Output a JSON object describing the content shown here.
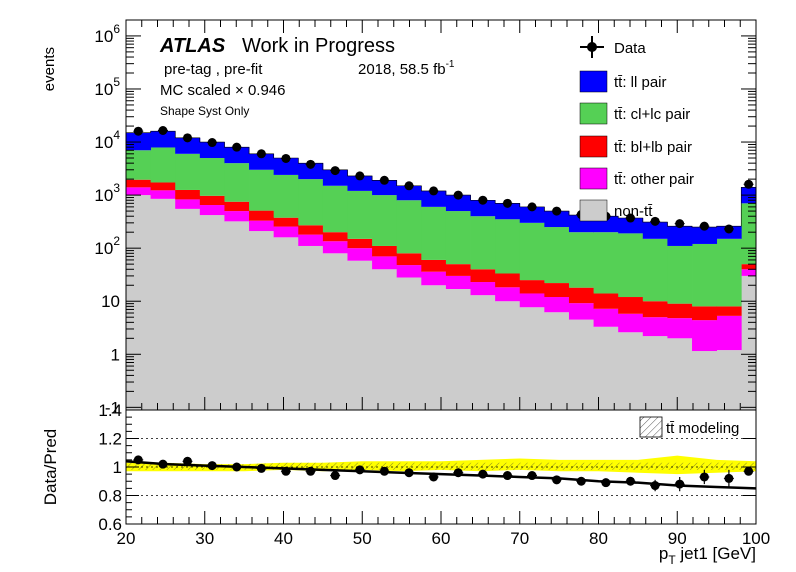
{
  "header": {
    "atlas": "ATLAS",
    "status": "Work in Progress",
    "selection": "pre-tag ,  pre-fit",
    "dataset": "2018, 58.5 fb",
    "lumi_exp": "-1",
    "mc_scale": "MC scaled × 0.946",
    "syst": "Shape Syst Only"
  },
  "colors": {
    "ll": "#0000ff",
    "cl": "#55d055",
    "bl": "#ff0000",
    "other": "#ff00ff",
    "nontt": "#cccccc",
    "band": "#ffff00"
  },
  "chart_data": [
    {
      "type": "bar",
      "stacked": true,
      "ylabel": "events",
      "yscale": "log",
      "ylim": [
        0.1,
        3000000
      ],
      "y_ticks": [
        {
          "value": 1000000,
          "label": "10",
          "exp": "6"
        },
        {
          "value": 100000,
          "label": "10",
          "exp": "5"
        },
        {
          "value": 10000,
          "label": "10",
          "exp": "4"
        },
        {
          "value": 1000,
          "label": "10",
          "exp": "3"
        },
        {
          "value": 100,
          "label": "10",
          "exp": "2"
        },
        {
          "value": 10,
          "label": "10",
          "exp": ""
        },
        {
          "value": 1,
          "label": "1",
          "exp": ""
        },
        {
          "value": 0.1,
          "label": "-1",
          "exp": ""
        }
      ],
      "xlim": [
        20,
        100
      ],
      "bin_edges": [
        20,
        23.125,
        26.25,
        29.375,
        32.5,
        35.625,
        38.75,
        41.875,
        45,
        48.125,
        51.25,
        54.375,
        57.5,
        60.625,
        63.75,
        66.875,
        70,
        73.125,
        76.25,
        79.375,
        82.5,
        85.625,
        88.75,
        91.875,
        95,
        98.125,
        100
      ],
      "series": [
        {
          "name": "non-tt̄",
          "key": "nontt",
          "values": [
            1000,
            850,
            550,
            420,
            320,
            210,
            160,
            110,
            80,
            58,
            40,
            28,
            20,
            17,
            13,
            10,
            7.7,
            6.2,
            4.5,
            3.3,
            2.6,
            2.2,
            2.0,
            1.15,
            1.2,
            30
          ]
        },
        {
          "name": "tt̄: other pair",
          "key": "other",
          "values": [
            400,
            380,
            280,
            230,
            180,
            120,
            95,
            70,
            55,
            42,
            30,
            20,
            16,
            13,
            10,
            8.3,
            6.3,
            5.8,
            4.7,
            3.9,
            3.2,
            2.8,
            2.8,
            3.25,
            4.1,
            10
          ]
        },
        {
          "name": "tt̄: bl+lb pair",
          "key": "bl",
          "values": [
            550,
            500,
            420,
            320,
            250,
            180,
            120,
            90,
            65,
            50,
            40,
            32,
            24,
            20,
            17,
            15,
            11,
            10,
            8.8,
            6.8,
            6.2,
            5.0,
            4.2,
            3.6,
            2.7,
            10
          ]
        },
        {
          "name": "tt̄: cl+lc pair",
          "key": "cl",
          "values": [
            5050,
            6170,
            4750,
            4030,
            3250,
            2490,
            2025,
            1730,
            1300,
            1050,
            890,
            720,
            540,
            450,
            360,
            317,
            275,
            228,
            182,
            186,
            178,
            140,
            101,
            112,
            142,
            650
          ]
        },
        {
          "name": "tt̄: ll pair",
          "key": "ll",
          "values": [
            8000,
            8100,
            6000,
            5000,
            4000,
            3000,
            2600,
            2000,
            1500,
            1100,
            900,
            700,
            600,
            500,
            400,
            350,
            300,
            250,
            220,
            200,
            180,
            160,
            150,
            130,
            110,
            700
          ]
        }
      ],
      "data": {
        "name": "Data",
        "x": [
          21.56,
          24.69,
          27.81,
          30.94,
          34.06,
          37.19,
          40.31,
          43.44,
          46.56,
          49.69,
          52.81,
          55.94,
          59.06,
          62.19,
          65.31,
          68.44,
          71.56,
          74.69,
          77.81,
          80.94,
          84.06,
          87.19,
          90.31,
          93.44,
          96.56,
          99.06
        ],
        "values": [
          16000,
          16500,
          12000,
          9800,
          8000,
          6000,
          4900,
          3800,
          2900,
          2300,
          1900,
          1500,
          1200,
          1000,
          800,
          700,
          600,
          500,
          430,
          400,
          370,
          320,
          290,
          260,
          230,
          1600
        ]
      },
      "legend": {
        "placement": "top-right"
      }
    },
    {
      "type": "scatter",
      "xlabel": "p_T jet1 [GeV]",
      "ylabel": "Data/Pred",
      "xlim": [
        20,
        100
      ],
      "ylim": [
        0.6,
        1.4
      ],
      "x_ticks": [
        20,
        30,
        40,
        50,
        60,
        70,
        80,
        90,
        100
      ],
      "y_ticks": [
        0.6,
        0.8,
        1,
        1.2,
        1.4
      ],
      "y_tick_labels": [
        "0.6",
        "0.8",
        "1",
        "1.2",
        "1.4"
      ],
      "reference_lines": [
        0.8,
        1.0,
        1.2
      ],
      "ratio": {
        "x": [
          21.56,
          24.69,
          27.81,
          30.94,
          34.06,
          37.19,
          40.31,
          43.44,
          46.56,
          49.69,
          52.81,
          55.94,
          59.06,
          62.19,
          65.31,
          68.44,
          71.56,
          74.69,
          77.81,
          80.94,
          84.06,
          87.19,
          90.31,
          93.44,
          96.56,
          99.06
        ],
        "values": [
          1.05,
          1.02,
          1.04,
          1.01,
          1.0,
          0.99,
          0.97,
          0.97,
          0.94,
          0.98,
          0.97,
          0.96,
          0.93,
          0.96,
          0.95,
          0.94,
          0.94,
          0.91,
          0.9,
          0.89,
          0.9,
          0.87,
          0.88,
          0.93,
          0.92,
          0.97
        ],
        "errors": [
          0.02,
          0.02,
          0.02,
          0.02,
          0.02,
          0.02,
          0.02,
          0.02,
          0.02,
          0.02,
          0.02,
          0.02,
          0.02,
          0.02,
          0.02,
          0.02,
          0.02,
          0.02,
          0.02,
          0.03,
          0.03,
          0.04,
          0.05,
          0.05,
          0.06,
          0.02
        ]
      },
      "modeling_line": {
        "name": "tt̄ modeling",
        "x": [
          20,
          25,
          30,
          35,
          40,
          45,
          50,
          55,
          60,
          65,
          70,
          75,
          80,
          85,
          90,
          95,
          100
        ],
        "values": [
          1.04,
          1.02,
          1.01,
          1.0,
          0.99,
          0.98,
          0.97,
          0.96,
          0.95,
          0.94,
          0.93,
          0.92,
          0.9,
          0.89,
          0.87,
          0.86,
          0.85
        ]
      },
      "yellow_band": {
        "x": [
          20,
          25,
          30,
          35,
          40,
          45,
          50,
          55,
          60,
          65,
          70,
          75,
          80,
          85,
          90,
          95,
          100
        ],
        "low": [
          0.97,
          0.97,
          0.97,
          0.97,
          0.98,
          0.97,
          0.98,
          0.97,
          0.98,
          0.97,
          0.98,
          0.97,
          0.97,
          0.96,
          0.95,
          0.96,
          0.97
        ],
        "high": [
          1.03,
          1.03,
          1.02,
          1.02,
          1.03,
          1.03,
          1.04,
          1.04,
          1.04,
          1.05,
          1.06,
          1.05,
          1.05,
          1.05,
          1.08,
          1.05,
          1.04
        ]
      },
      "legend": {
        "placement": "top-right"
      }
    }
  ]
}
